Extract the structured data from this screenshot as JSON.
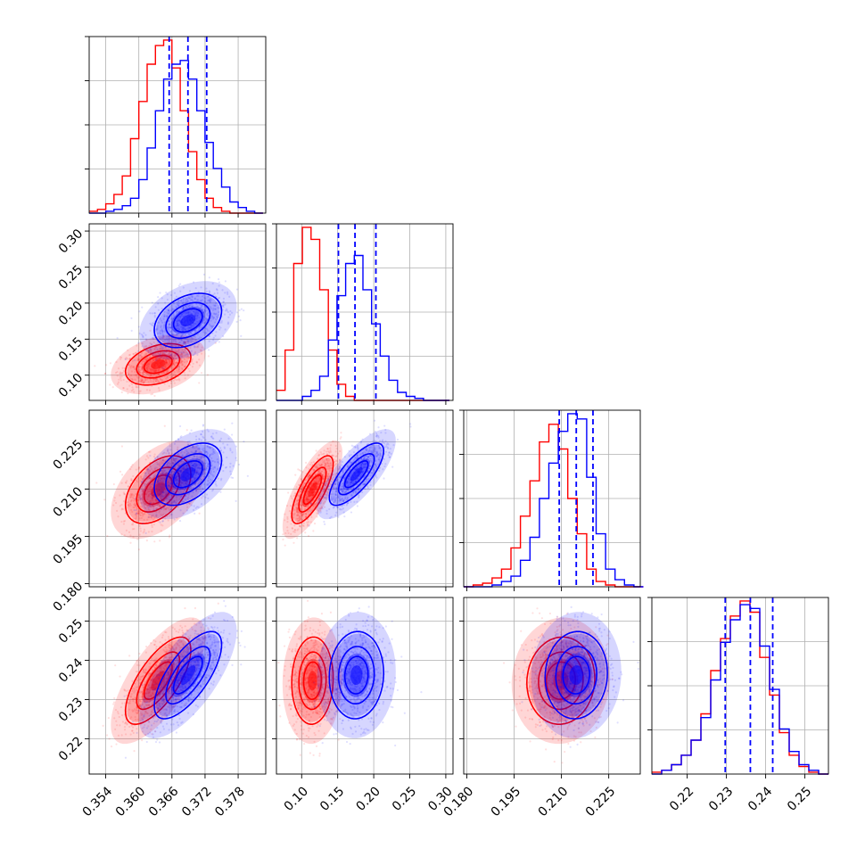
{
  "chart_data": {
    "type": "corner",
    "colors": {
      "posterior_a": "#ff0000",
      "posterior_b": "#0000ff"
    },
    "grid": true,
    "parameters": [
      {
        "range": [
          0.351,
          0.383
        ],
        "ticks": [
          "0.354",
          "0.360",
          "0.366",
          "0.372",
          "0.378"
        ],
        "tick_values": [
          0.354,
          0.36,
          0.366,
          0.372,
          0.378
        ],
        "quantiles_b": [
          0.3655,
          0.3689,
          0.3723
        ]
      },
      {
        "range": [
          0.065,
          0.31
        ],
        "ticks": [
          "0.10",
          "0.15",
          "0.20",
          "0.25",
          "0.30"
        ],
        "tick_values": [
          0.1,
          0.15,
          0.2,
          0.25,
          0.3
        ],
        "quantiles_b": [
          0.151,
          0.174,
          0.203
        ]
      },
      {
        "range": [
          0.179,
          0.235
        ],
        "ticks": [
          "0.180",
          "0.195",
          "0.210",
          "0.225"
        ],
        "tick_values": [
          0.18,
          0.195,
          0.21,
          0.225
        ],
        "quantiles_b": [
          0.2093,
          0.2147,
          0.22
        ]
      },
      {
        "range": [
          0.211,
          0.256
        ],
        "ticks": [
          "0.22",
          "0.23",
          "0.24",
          "0.25"
        ],
        "tick_values": [
          0.22,
          0.23,
          0.24,
          0.25
        ],
        "quantiles_b": [
          0.2297,
          0.2361,
          0.2418
        ]
      }
    ],
    "series": [
      {
        "key": "posterior_a",
        "color": "#ff0000",
        "means": [
          0.3635,
          0.115,
          0.2098,
          0.2348
        ],
        "sds": [
          0.0033,
          0.016,
          0.006,
          0.0062
        ]
      },
      {
        "key": "posterior_b",
        "color": "#0000ff",
        "means": [
          0.3689,
          0.176,
          0.2147,
          0.2362
        ],
        "sds": [
          0.0034,
          0.021,
          0.0055,
          0.0062
        ]
      }
    ],
    "correlations": [
      [
        0,
        1,
        0.35
      ],
      [
        0,
        2,
        0.45
      ],
      [
        0,
        3,
        0.7
      ],
      [
        1,
        2,
        0.75
      ],
      [
        1,
        3,
        0.05
      ],
      [
        2,
        3,
        0.05
      ]
    ],
    "histograms": [
      {
        "bins": [
          0.351,
          0.3525,
          0.354,
          0.3555,
          0.357,
          0.3585,
          0.36,
          0.3615,
          0.363,
          0.3645,
          0.366,
          0.3675,
          0.369,
          0.3705,
          0.372,
          0.3735,
          0.375,
          0.3765,
          0.378,
          0.3795,
          0.381,
          0.3825
        ],
        "posterior_a": [
          0.01,
          0.02,
          0.05,
          0.1,
          0.2,
          0.4,
          0.6,
          0.8,
          0.9,
          0.93,
          0.78,
          0.55,
          0.33,
          0.18,
          0.08,
          0.03,
          0.01,
          0.0,
          0.0,
          0.0,
          0.0
        ],
        "posterior_b": [
          0.0,
          0.0,
          0.01,
          0.02,
          0.04,
          0.08,
          0.18,
          0.35,
          0.55,
          0.72,
          0.8,
          0.82,
          0.72,
          0.55,
          0.38,
          0.24,
          0.14,
          0.06,
          0.03,
          0.01,
          0.0
        ]
      },
      {
        "bins": [
          0.065,
          0.077,
          0.089,
          0.101,
          0.113,
          0.125,
          0.137,
          0.149,
          0.161,
          0.173,
          0.185,
          0.197,
          0.209,
          0.221,
          0.233,
          0.245,
          0.257,
          0.269,
          0.281,
          0.293,
          0.305
        ],
        "posterior_a": [
          0.05,
          0.25,
          0.68,
          0.86,
          0.8,
          0.55,
          0.25,
          0.08,
          0.02,
          0.0,
          0.0,
          0.0,
          0.0,
          0.0,
          0.0,
          0.0,
          0.0,
          0.0,
          0.0,
          0.0
        ],
        "posterior_b": [
          0.0,
          0.0,
          0.0,
          0.02,
          0.05,
          0.12,
          0.3,
          0.52,
          0.68,
          0.72,
          0.55,
          0.38,
          0.22,
          0.1,
          0.04,
          0.02,
          0.01,
          0.0,
          0.0,
          0.0
        ]
      },
      {
        "bins": [
          0.179,
          0.182,
          0.185,
          0.188,
          0.191,
          0.194,
          0.197,
          0.2,
          0.203,
          0.206,
          0.209,
          0.212,
          0.215,
          0.218,
          0.221,
          0.224,
          0.227,
          0.23,
          0.233,
          0.236
        ],
        "posterior_a": [
          0.0,
          0.01,
          0.02,
          0.05,
          0.1,
          0.22,
          0.4,
          0.6,
          0.82,
          0.92,
          0.78,
          0.5,
          0.3,
          0.1,
          0.03,
          0.01,
          0.0,
          0.0,
          0.0
        ],
        "posterior_b": [
          0.0,
          0.0,
          0.0,
          0.01,
          0.03,
          0.06,
          0.15,
          0.28,
          0.5,
          0.7,
          0.88,
          0.98,
          0.95,
          0.62,
          0.3,
          0.1,
          0.04,
          0.01,
          0.0
        ]
      },
      {
        "bins": [
          0.211,
          0.2135,
          0.216,
          0.2185,
          0.221,
          0.2235,
          0.226,
          0.2285,
          0.231,
          0.2335,
          0.236,
          0.2385,
          0.241,
          0.2435,
          0.246,
          0.2485,
          0.251,
          0.2535,
          0.256
        ],
        "posterior_a": [
          0.01,
          0.02,
          0.05,
          0.1,
          0.18,
          0.32,
          0.55,
          0.72,
          0.84,
          0.92,
          0.86,
          0.62,
          0.42,
          0.22,
          0.1,
          0.04,
          0.01,
          0.0
        ],
        "posterior_b": [
          0.0,
          0.02,
          0.05,
          0.1,
          0.18,
          0.3,
          0.5,
          0.7,
          0.82,
          0.9,
          0.88,
          0.68,
          0.45,
          0.24,
          0.12,
          0.05,
          0.02,
          0.0
        ]
      }
    ]
  }
}
